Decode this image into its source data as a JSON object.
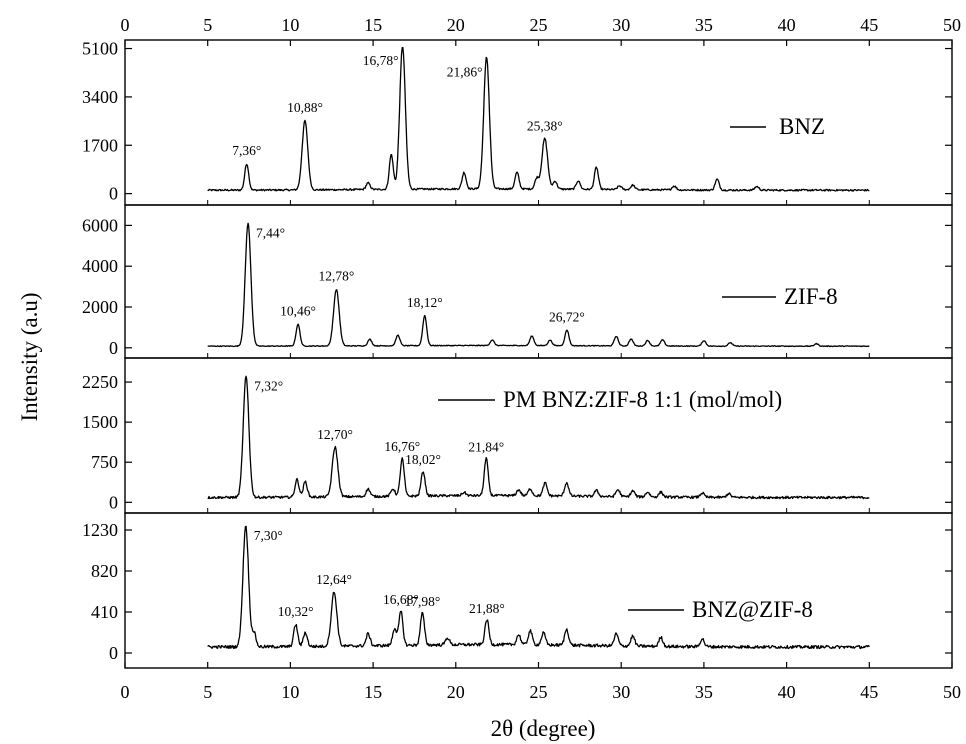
{
  "chart_data": {
    "type": "line",
    "xlabel": "2θ (degree)",
    "ylabel": "Intensity (a.u)",
    "xlim": [
      0,
      50
    ],
    "x_ticks": [
      "0",
      "5",
      "10",
      "15",
      "20",
      "25",
      "30",
      "35",
      "40",
      "45",
      "50"
    ],
    "panels": [
      {
        "name": "BNZ",
        "ylim": [
          -400,
          5400
        ],
        "y_ticks": [
          "0",
          "1700",
          "3400",
          "5100"
        ],
        "y_tick_values": [
          0,
          1700,
          3400,
          5100
        ],
        "baseline": 120,
        "peaks": [
          {
            "x": 7.36,
            "y": 1050,
            "label": "7,36°"
          },
          {
            "x": 10.88,
            "y": 2550,
            "label": "10,88°"
          },
          {
            "x": 14.7,
            "y": 350
          },
          {
            "x": 16.1,
            "y": 1350
          },
          {
            "x": 16.78,
            "y": 5150,
            "label": "16,78°"
          },
          {
            "x": 20.5,
            "y": 700
          },
          {
            "x": 21.86,
            "y": 4750,
            "label": "21,86°"
          },
          {
            "x": 23.7,
            "y": 700
          },
          {
            "x": 24.9,
            "y": 500
          },
          {
            "x": 25.38,
            "y": 1900,
            "label": "25,38°"
          },
          {
            "x": 26.0,
            "y": 400
          },
          {
            "x": 27.4,
            "y": 420
          },
          {
            "x": 28.5,
            "y": 900
          },
          {
            "x": 29.9,
            "y": 250
          },
          {
            "x": 30.7,
            "y": 280
          },
          {
            "x": 33.2,
            "y": 260
          },
          {
            "x": 35.8,
            "y": 500
          },
          {
            "x": 38.2,
            "y": 250
          }
        ]
      },
      {
        "name": "ZIF-8",
        "ylim": [
          -500,
          7000
        ],
        "y_ticks": [
          "0",
          "2000",
          "4000",
          "6000"
        ],
        "y_tick_values": [
          0,
          2000,
          4000,
          6000
        ],
        "baseline": 80,
        "peaks": [
          {
            "x": 7.44,
            "y": 6100,
            "label": "7,44°"
          },
          {
            "x": 10.46,
            "y": 1150,
            "label": "10,46°"
          },
          {
            "x": 12.78,
            "y": 2850,
            "label": "12,78°"
          },
          {
            "x": 14.8,
            "y": 400
          },
          {
            "x": 16.5,
            "y": 600
          },
          {
            "x": 18.12,
            "y": 1550,
            "label": "18,12°"
          },
          {
            "x": 22.2,
            "y": 350
          },
          {
            "x": 24.6,
            "y": 550
          },
          {
            "x": 25.7,
            "y": 350
          },
          {
            "x": 26.72,
            "y": 850,
            "label": "26,72°"
          },
          {
            "x": 29.7,
            "y": 550
          },
          {
            "x": 30.6,
            "y": 420
          },
          {
            "x": 31.6,
            "y": 350
          },
          {
            "x": 32.5,
            "y": 380
          },
          {
            "x": 35.0,
            "y": 350
          },
          {
            "x": 36.6,
            "y": 250
          },
          {
            "x": 41.8,
            "y": 200
          }
        ]
      },
      {
        "name": "PM BNZ:ZIF-8 1:1 (mol/mol)",
        "ylim": [
          -200,
          2700
        ],
        "y_ticks": [
          "0",
          "750",
          "1500",
          "2250"
        ],
        "y_tick_values": [
          0,
          750,
          1500,
          2250
        ],
        "baseline": 90,
        "peaks": [
          {
            "x": 7.32,
            "y": 2350,
            "label": "7,32°"
          },
          {
            "x": 10.4,
            "y": 420
          },
          {
            "x": 10.9,
            "y": 380
          },
          {
            "x": 12.7,
            "y": 1020,
            "label": "12,70°"
          },
          {
            "x": 14.7,
            "y": 230
          },
          {
            "x": 16.2,
            "y": 230
          },
          {
            "x": 16.76,
            "y": 790,
            "label": "16,76°"
          },
          {
            "x": 18.02,
            "y": 550,
            "label": "18,02°"
          },
          {
            "x": 20.5,
            "y": 150
          },
          {
            "x": 21.84,
            "y": 780,
            "label": "21,84°"
          },
          {
            "x": 23.8,
            "y": 200
          },
          {
            "x": 24.5,
            "y": 220
          },
          {
            "x": 25.4,
            "y": 330
          },
          {
            "x": 26.7,
            "y": 340
          },
          {
            "x": 28.5,
            "y": 200
          },
          {
            "x": 29.8,
            "y": 220
          },
          {
            "x": 30.7,
            "y": 200
          },
          {
            "x": 31.6,
            "y": 180
          },
          {
            "x": 32.4,
            "y": 180
          },
          {
            "x": 34.9,
            "y": 170
          },
          {
            "x": 36.5,
            "y": 160
          }
        ]
      },
      {
        "name": "BNZ@ZIF-8",
        "ylim": [
          -150,
          1400
        ],
        "y_ticks": [
          "0",
          "410",
          "820",
          "1230"
        ],
        "y_tick_values": [
          0,
          410,
          820,
          1230
        ],
        "baseline": 60,
        "peaks": [
          {
            "x": 7.3,
            "y": 1270,
            "label": "7,30°"
          },
          {
            "x": 7.8,
            "y": 200
          },
          {
            "x": 10.32,
            "y": 280,
            "label": "10,32°"
          },
          {
            "x": 10.9,
            "y": 200
          },
          {
            "x": 12.64,
            "y": 600,
            "label": "12,64°"
          },
          {
            "x": 14.7,
            "y": 180
          },
          {
            "x": 16.3,
            "y": 230
          },
          {
            "x": 16.68,
            "y": 400,
            "label": "16,68°"
          },
          {
            "x": 17.98,
            "y": 380,
            "label": "17,98°"
          },
          {
            "x": 19.5,
            "y": 130
          },
          {
            "x": 21.88,
            "y": 310,
            "label": "21,88°"
          },
          {
            "x": 23.8,
            "y": 160
          },
          {
            "x": 24.5,
            "y": 200
          },
          {
            "x": 25.3,
            "y": 180
          },
          {
            "x": 26.7,
            "y": 220
          },
          {
            "x": 29.7,
            "y": 180
          },
          {
            "x": 30.7,
            "y": 160
          },
          {
            "x": 32.4,
            "y": 150
          },
          {
            "x": 34.9,
            "y": 140
          }
        ]
      }
    ]
  }
}
